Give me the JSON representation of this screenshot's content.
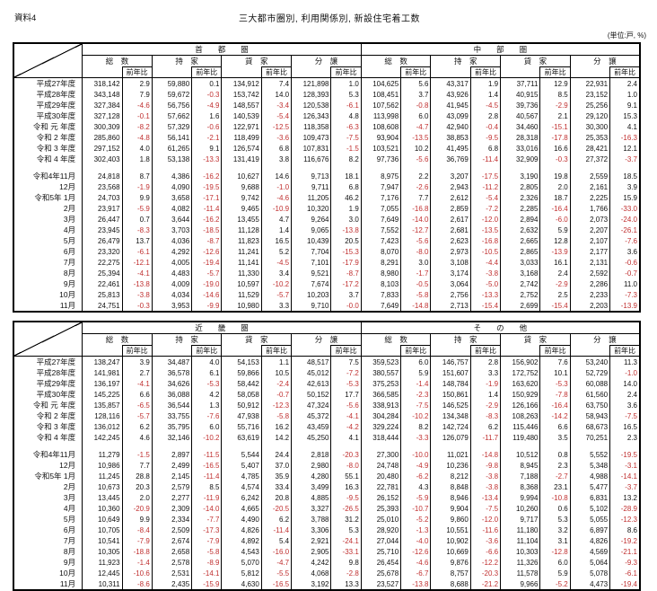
{
  "page": {
    "doc_label": "資料4",
    "title": "三大都市圏別, 利用関係別, 新設住宅着工数",
    "unit_note": "(単位:戸, %)",
    "negative_color": "#c03030"
  },
  "header": {
    "col_groups": [
      "総　数",
      "持　家",
      "貸　家",
      "分　譲"
    ],
    "yoy_label": "前年比"
  },
  "tables": [
    {
      "regions": [
        "首　　都　　圏",
        "中　　部　　圏"
      ],
      "annual_rows": [
        {
          "label": "平成27年度",
          "v": [
            "318,142",
            "2.9",
            "59,880",
            "0.1",
            "134,912",
            "7.4",
            "121,898",
            "1.0",
            "104,625",
            "5.6",
            "43,317",
            "1.9",
            "37,711",
            "12.9",
            "22,931",
            "2.4"
          ]
        },
        {
          "label": "平成28年度",
          "v": [
            "343,148",
            "7.9",
            "59,672",
            "-0.3",
            "153,742",
            "14.0",
            "128,393",
            "5.3",
            "108,451",
            "3.7",
            "43,926",
            "1.4",
            "40,915",
            "8.5",
            "23,152",
            "1.0"
          ]
        },
        {
          "label": "平成29年度",
          "v": [
            "327,384",
            "-4.6",
            "56,756",
            "-4.9",
            "148,557",
            "-3.4",
            "120,538",
            "-6.1",
            "107,562",
            "-0.8",
            "41,945",
            "-4.5",
            "39,736",
            "-2.9",
            "25,256",
            "9.1"
          ]
        },
        {
          "label": "平成30年度",
          "v": [
            "327,128",
            "-0.1",
            "57,662",
            "1.6",
            "140,539",
            "-5.4",
            "126,343",
            "4.8",
            "113,998",
            "6.0",
            "43,099",
            "2.8",
            "40,567",
            "2.1",
            "29,120",
            "15.3"
          ]
        },
        {
          "label": "令和 元 年度",
          "v": [
            "300,309",
            "-8.2",
            "57,329",
            "-0.6",
            "122,971",
            "-12.5",
            "118,358",
            "-6.3",
            "108,608",
            "-4.7",
            "42,940",
            "-0.4",
            "34,460",
            "-15.1",
            "30,300",
            "4.1"
          ]
        },
        {
          "label": "令和 2 年度",
          "v": [
            "285,860",
            "-4.8",
            "56,141",
            "-2.1",
            "118,499",
            "-3.6",
            "109,473",
            "-7.5",
            "93,904",
            "-13.5",
            "38,853",
            "-9.5",
            "28,318",
            "-17.8",
            "25,353",
            "-16.3"
          ]
        },
        {
          "label": "令和 3 年度",
          "v": [
            "297,152",
            "4.0",
            "61,265",
            "9.1",
            "126,574",
            "6.8",
            "107,831",
            "-1.5",
            "103,521",
            "10.2",
            "41,495",
            "6.8",
            "33,016",
            "16.6",
            "28,421",
            "12.1"
          ]
        },
        {
          "label": "令和 4 年度",
          "v": [
            "302,403",
            "1.8",
            "53,138",
            "-13.3",
            "131,419",
            "3.8",
            "116,676",
            "8.2",
            "97,736",
            "-5.6",
            "36,769",
            "-11.4",
            "32,909",
            "-0.3",
            "27,372",
            "-3.7"
          ]
        }
      ],
      "monthly_rows": [
        {
          "label": "令和4年11月",
          "v": [
            "24,818",
            "8.7",
            "4,386",
            "-16.2",
            "10,627",
            "14.6",
            "9,713",
            "18.1",
            "8,975",
            "2.2",
            "3,207",
            "-17.5",
            "3,190",
            "19.8",
            "2,559",
            "18.5"
          ]
        },
        {
          "label": "12月",
          "v": [
            "23,568",
            "-1.9",
            "4,090",
            "-19.5",
            "9,688",
            "-1.0",
            "9,711",
            "6.8",
            "7,947",
            "-2.6",
            "2,943",
            "-11.2",
            "2,805",
            "2.0",
            "2,161",
            "3.9"
          ]
        },
        {
          "label": "令和5年 1月",
          "v": [
            "24,703",
            "9.9",
            "3,658",
            "-17.1",
            "9,742",
            "-4.6",
            "11,205",
            "46.2",
            "7,176",
            "7.7",
            "2,612",
            "-5.4",
            "2,326",
            "18.7",
            "2,225",
            "15.9"
          ]
        },
        {
          "label": "2月",
          "v": [
            "23,917",
            "-5.9",
            "4,082",
            "-11.4",
            "9,465",
            "-10.9",
            "10,320",
            "1.9",
            "7,055",
            "-16.8",
            "2,859",
            "-7.2",
            "2,285",
            "-16.4",
            "1,766",
            "-33.0"
          ]
        },
        {
          "label": "3月",
          "v": [
            "26,447",
            "0.7",
            "3,644",
            "-16.2",
            "13,455",
            "4.7",
            "9,264",
            "3.0",
            "7,649",
            "-14.0",
            "2,617",
            "-12.0",
            "2,894",
            "-6.0",
            "2,073",
            "-24.0"
          ]
        },
        {
          "label": "4月",
          "v": [
            "23,945",
            "-8.3",
            "3,703",
            "-18.5",
            "11,128",
            "1.4",
            "9,065",
            "-13.8",
            "7,552",
            "-12.7",
            "2,681",
            "-13.5",
            "2,632",
            "5.9",
            "2,207",
            "-26.1"
          ]
        },
        {
          "label": "5月",
          "v": [
            "26,479",
            "13.7",
            "4,036",
            "-8.7",
            "11,823",
            "16.5",
            "10,439",
            "20.5",
            "7,423",
            "-5.6",
            "2,623",
            "-16.8",
            "2,665",
            "12.8",
            "2,107",
            "-7.6"
          ]
        },
        {
          "label": "6月",
          "v": [
            "23,320",
            "-6.1",
            "4,292",
            "-12.6",
            "11,241",
            "5.2",
            "7,704",
            "-15.3",
            "8,070",
            "-8.0",
            "2,973",
            "-10.5",
            "2,865",
            "-13.9",
            "2,177",
            "3.6"
          ]
        },
        {
          "label": "7月",
          "v": [
            "22,275",
            "-12.1",
            "4,005",
            "-19.4",
            "11,141",
            "-4.5",
            "7,101",
            "-17.9",
            "8,291",
            "3.0",
            "3,108",
            "-4.4",
            "3,033",
            "16.1",
            "2,131",
            "-0.6"
          ]
        },
        {
          "label": "8月",
          "v": [
            "25,394",
            "-4.1",
            "4,483",
            "-5.7",
            "11,330",
            "3.4",
            "9,521",
            "-8.7",
            "8,980",
            "-1.7",
            "3,174",
            "-3.8",
            "3,168",
            "2.4",
            "2,592",
            "-0.7"
          ]
        },
        {
          "label": "9月",
          "v": [
            "22,461",
            "-13.8",
            "4,009",
            "-19.0",
            "10,597",
            "-10.2",
            "7,674",
            "-17.2",
            "8,103",
            "-0.5",
            "3,064",
            "-5.0",
            "2,742",
            "-2.9",
            "2,286",
            "11.0"
          ]
        },
        {
          "label": "10月",
          "v": [
            "25,813",
            "-3.8",
            "4,034",
            "-14.6",
            "11,529",
            "-5.7",
            "10,203",
            "3.7",
            "7,833",
            "-5.8",
            "2,756",
            "-13.3",
            "2,752",
            "2.5",
            "2,233",
            "-7.3"
          ]
        },
        {
          "label": "11月",
          "v": [
            "24,751",
            "-0.3",
            "3,953",
            "-9.9",
            "10,980",
            "3.3",
            "9,710",
            "-0.0",
            "7,649",
            "-14.8",
            "2,713",
            "-15.4",
            "2,699",
            "-15.4",
            "2,203",
            "-13.9"
          ]
        }
      ]
    },
    {
      "regions": [
        "近　　畿　　圏",
        "そ　　の　　他"
      ],
      "annual_rows": [
        {
          "label": "平成27年度",
          "v": [
            "138,247",
            "3.9",
            "34,487",
            "4.0",
            "54,153",
            "1.1",
            "48,517",
            "7.5",
            "359,523",
            "6.0",
            "146,757",
            "2.8",
            "156,902",
            "7.6",
            "53,240",
            "11.3"
          ]
        },
        {
          "label": "平成28年度",
          "v": [
            "141,981",
            "2.7",
            "36,578",
            "6.1",
            "59,866",
            "10.5",
            "45,012",
            "-7.2",
            "380,557",
            "5.9",
            "151,607",
            "3.3",
            "172,752",
            "10.1",
            "52,729",
            "-1.0"
          ]
        },
        {
          "label": "平成29年度",
          "v": [
            "136,197",
            "-4.1",
            "34,626",
            "-5.3",
            "58,442",
            "-2.4",
            "42,613",
            "-5.3",
            "375,253",
            "-1.4",
            "148,784",
            "-1.9",
            "163,620",
            "-5.3",
            "60,088",
            "14.0"
          ]
        },
        {
          "label": "平成30年度",
          "v": [
            "145,225",
            "6.6",
            "36,088",
            "4.2",
            "58,058",
            "-0.7",
            "50,152",
            "17.7",
            "366,585",
            "-2.3",
            "150,861",
            "1.4",
            "150,929",
            "-7.8",
            "61,560",
            "2.4"
          ]
        },
        {
          "label": "令和 元 年度",
          "v": [
            "135,857",
            "-6.5",
            "36,544",
            "1.3",
            "50,912",
            "-12.3",
            "47,324",
            "-5.6",
            "338,913",
            "-7.5",
            "146,525",
            "-2.9",
            "126,166",
            "-16.4",
            "63,750",
            "3.6"
          ]
        },
        {
          "label": "令和 2 年度",
          "v": [
            "128,116",
            "-5.7",
            "33,755",
            "-7.6",
            "47,938",
            "-5.8",
            "45,372",
            "-4.1",
            "304,284",
            "-10.2",
            "134,348",
            "-8.3",
            "108,263",
            "-14.2",
            "58,943",
            "-7.5"
          ]
        },
        {
          "label": "令和 3 年度",
          "v": [
            "136,012",
            "6.2",
            "35,795",
            "6.0",
            "55,716",
            "16.2",
            "43,459",
            "-4.2",
            "329,224",
            "8.2",
            "142,724",
            "6.2",
            "115,446",
            "6.6",
            "68,673",
            "16.5"
          ]
        },
        {
          "label": "令和 4 年度",
          "v": [
            "142,245",
            "4.6",
            "32,146",
            "-10.2",
            "63,619",
            "14.2",
            "45,250",
            "4.1",
            "318,444",
            "-3.3",
            "126,079",
            "-11.7",
            "119,480",
            "3.5",
            "70,251",
            "2.3"
          ]
        }
      ],
      "monthly_rows": [
        {
          "label": "令和4年11月",
          "v": [
            "11,279",
            "-1.5",
            "2,897",
            "-11.5",
            "5,544",
            "24.4",
            "2,818",
            "-20.3",
            "27,300",
            "-10.0",
            "11,021",
            "-14.8",
            "10,512",
            "0.8",
            "5,552",
            "-19.5"
          ]
        },
        {
          "label": "12月",
          "v": [
            "10,986",
            "7.7",
            "2,499",
            "-16.5",
            "5,407",
            "37.0",
            "2,980",
            "-8.0",
            "24,748",
            "-4.9",
            "10,236",
            "-9.8",
            "8,945",
            "2.3",
            "5,348",
            "-3.1"
          ]
        },
        {
          "label": "令和5年 1月",
          "v": [
            "11,245",
            "28.8",
            "2,145",
            "-11.4",
            "4,785",
            "35.9",
            "4,280",
            "55.1",
            "20,480",
            "-6.2",
            "8,212",
            "-3.8",
            "7,188",
            "-2.7",
            "4,988",
            "-14.1"
          ]
        },
        {
          "label": "2月",
          "v": [
            "10,673",
            "20.3",
            "2,579",
            "8.5",
            "4,574",
            "33.4",
            "3,499",
            "16.3",
            "22,781",
            "4.3",
            "8,848",
            "-3.8",
            "8,368",
            "23.1",
            "5,477",
            "-3.7"
          ]
        },
        {
          "label": "3月",
          "v": [
            "13,445",
            "2.0",
            "2,277",
            "-11.9",
            "6,242",
            "20.8",
            "4,885",
            "-9.5",
            "26,152",
            "-5.9",
            "8,946",
            "-13.4",
            "9,994",
            "-10.8",
            "6,831",
            "13.2"
          ]
        },
        {
          "label": "4月",
          "v": [
            "10,360",
            "-20.9",
            "2,309",
            "-14.0",
            "4,665",
            "-20.5",
            "3,327",
            "-26.5",
            "25,393",
            "-10.7",
            "9,904",
            "-7.5",
            "10,260",
            "0.6",
            "5,102",
            "-28.9"
          ]
        },
        {
          "label": "5月",
          "v": [
            "10,649",
            "9.9",
            "2,334",
            "-7.7",
            "4,490",
            "6.2",
            "3,788",
            "31.2",
            "25,010",
            "-5.2",
            "9,860",
            "-12.0",
            "9,717",
            "5.3",
            "5,055",
            "-12.3"
          ]
        },
        {
          "label": "6月",
          "v": [
            "10,705",
            "-8.4",
            "2,509",
            "-17.3",
            "4,826",
            "-11.4",
            "3,306",
            "5.3",
            "28,920",
            "-1.3",
            "10,551",
            "-11.6",
            "11,180",
            "3.2",
            "6,897",
            "8.6"
          ]
        },
        {
          "label": "7月",
          "v": [
            "10,541",
            "-7.9",
            "2,674",
            "-7.9",
            "4,892",
            "5.4",
            "2,921",
            "-24.1",
            "27,044",
            "-4.0",
            "10,902",
            "-3.6",
            "11,104",
            "3.1",
            "4,826",
            "-19.2"
          ]
        },
        {
          "label": "8月",
          "v": [
            "10,305",
            "-18.8",
            "2,658",
            "-5.8",
            "4,543",
            "-16.0",
            "2,905",
            "-33.1",
            "25,710",
            "-12.6",
            "10,669",
            "-6.6",
            "10,303",
            "-12.8",
            "4,569",
            "-21.1"
          ]
        },
        {
          "label": "9月",
          "v": [
            "11,923",
            "-1.4",
            "2,578",
            "-8.9",
            "5,070",
            "-4.7",
            "4,242",
            "9.8",
            "26,454",
            "-4.6",
            "9,876",
            "-12.2",
            "11,326",
            "6.0",
            "5,064",
            "-9.3"
          ]
        },
        {
          "label": "10月",
          "v": [
            "12,445",
            "-10.6",
            "2,531",
            "-14.1",
            "5,812",
            "-5.5",
            "4,068",
            "-2.8",
            "25,678",
            "-6.7",
            "8,757",
            "-20.3",
            "11,578",
            "5.9",
            "5,078",
            "-6.1"
          ]
        },
        {
          "label": "11月",
          "v": [
            "10,311",
            "-8.6",
            "2,435",
            "-15.9",
            "4,630",
            "-16.5",
            "3,192",
            "13.3",
            "23,527",
            "-13.8",
            "8,688",
            "-21.2",
            "9,966",
            "-5.2",
            "4,473",
            "-19.4"
          ]
        }
      ]
    }
  ]
}
